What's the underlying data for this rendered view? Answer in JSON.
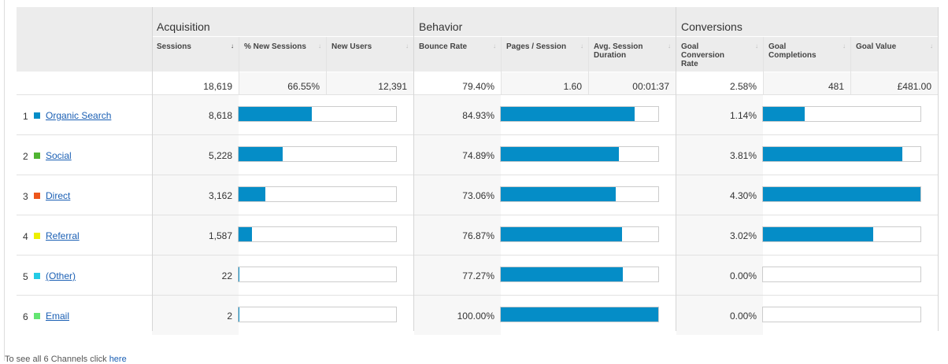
{
  "groups": {
    "acquisition": "Acquisition",
    "behavior": "Behavior",
    "conversions": "Conversions"
  },
  "columns": {
    "sessions": "Sessions",
    "new_sessions": "% New Sessions",
    "new_users": "New Users",
    "bounce_rate": "Bounce Rate",
    "pages_session": "Pages / Session",
    "avg_duration": "Avg. Session Duration",
    "goal_conv": "Goal Conversion Rate",
    "goal_completions": "Goal Completions",
    "goal_value": "Goal Value"
  },
  "totals": {
    "sessions": "18,619",
    "new_sessions": "66.55%",
    "new_users": "12,391",
    "bounce_rate": "79.40%",
    "pages_session": "1.60",
    "avg_duration": "00:01:37",
    "goal_conv": "2.58%",
    "goal_completions": "481",
    "goal_value": "£481.00"
  },
  "colors": {
    "bar": "#058dc7",
    "link": "#1a5fb4"
  },
  "rows": [
    {
      "num": "1",
      "name": "Organic Search",
      "color": "#058dc7",
      "sessions": "8,618",
      "sessions_share": 0.463,
      "bounce": "84.93%",
      "bounce_share": 0.849,
      "conv": "1.14%",
      "conv_share": 0.265
    },
    {
      "num": "2",
      "name": "Social",
      "color": "#50b432",
      "sessions": "5,228",
      "sessions_share": 0.281,
      "bounce": "74.89%",
      "bounce_share": 0.749,
      "conv": "3.81%",
      "conv_share": 0.886
    },
    {
      "num": "3",
      "name": "Direct",
      "color": "#ed561b",
      "sessions": "3,162",
      "sessions_share": 0.17,
      "bounce": "73.06%",
      "bounce_share": 0.731,
      "conv": "4.30%",
      "conv_share": 1.0
    },
    {
      "num": "4",
      "name": "Referral",
      "color": "#edef00",
      "sessions": "1,587",
      "sessions_share": 0.085,
      "bounce": "76.87%",
      "bounce_share": 0.769,
      "conv": "3.02%",
      "conv_share": 0.702
    },
    {
      "num": "5",
      "name": "(Other)",
      "color": "#24cbe5",
      "sessions": "22",
      "sessions_share": 0.0012,
      "bounce": "77.27%",
      "bounce_share": 0.773,
      "conv": "0.00%",
      "conv_share": 0.0
    },
    {
      "num": "6",
      "name": "Email",
      "color": "#64e572",
      "sessions": "2",
      "sessions_share": 0.0001,
      "bounce": "100.00%",
      "bounce_share": 1.0,
      "conv": "0.00%",
      "conv_share": 0.0
    }
  ],
  "footer": {
    "text": "To see all 6 Channels click ",
    "link": "here"
  }
}
